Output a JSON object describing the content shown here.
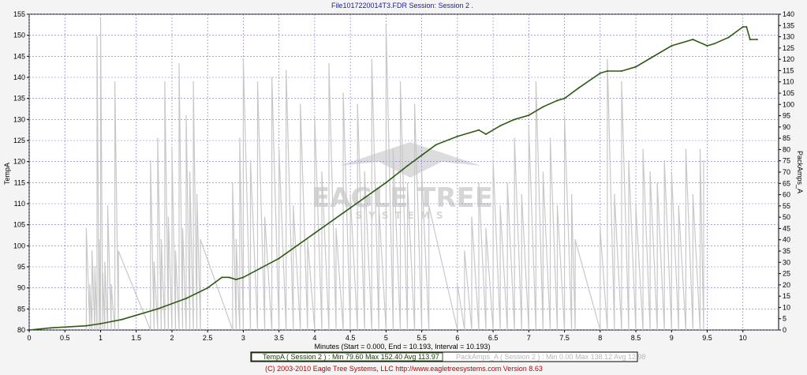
{
  "chart_data": {
    "type": "line",
    "title": "File1017220014T3.FDR   Session: Session 2 .",
    "xlabel": "Minutes (Start = 0.000,  End = 10.193,  Interval = 10.193)",
    "ylabel_left": "TempA",
    "ylabel_right": "PackAmps_A",
    "xlim": [
      0,
      10.5
    ],
    "ylim_left": [
      80,
      155
    ],
    "ylim_right": [
      0,
      140
    ],
    "grid": true,
    "x_ticks": [
      "0",
      "0.5",
      "1",
      "1.5",
      "2",
      "2.5",
      "3",
      "3.5",
      "4",
      "4.5",
      "5",
      "5.5",
      "6",
      "6.5",
      "7",
      "7.5",
      "8",
      "8.5",
      "9",
      "9.5",
      "10"
    ],
    "y_left_ticks": [
      "80",
      "85",
      "90",
      "95",
      "100",
      "105",
      "110",
      "115",
      "120",
      "125",
      "130",
      "135",
      "140",
      "145",
      "150",
      "155"
    ],
    "y_right_ticks": [
      "0",
      "5",
      "10",
      "15",
      "20",
      "25",
      "30",
      "35",
      "40",
      "45",
      "50",
      "55",
      "60",
      "65",
      "70",
      "75",
      "80",
      "85",
      "90",
      "95",
      "100",
      "105",
      "110",
      "115",
      "120",
      "125",
      "130",
      "135",
      "140"
    ],
    "series": [
      {
        "name": "TempA",
        "axis": "left",
        "color": "#2f5a14",
        "x": [
          0,
          0.3,
          0.8,
          1.0,
          1.3,
          1.5,
          1.8,
          2.2,
          2.5,
          2.7,
          2.8,
          2.9,
          3.0,
          3.5,
          4.0,
          4.5,
          5.0,
          5.3,
          5.5,
          5.7,
          6.0,
          6.3,
          6.4,
          6.6,
          6.8,
          7.0,
          7.2,
          7.4,
          7.5,
          7.7,
          8.0,
          8.1,
          8.3,
          8.5,
          8.7,
          9.0,
          9.3,
          9.5,
          9.6,
          9.8,
          10.0,
          10.05,
          10.1,
          10.2
        ],
        "y": [
          80,
          80.5,
          81,
          81.5,
          82.5,
          83.5,
          85,
          87.5,
          90,
          92.5,
          92.5,
          92,
          92.5,
          97,
          103,
          109,
          115,
          119,
          121.5,
          124,
          126,
          127.5,
          126.5,
          128.5,
          130,
          131,
          133,
          134.5,
          135,
          137.5,
          141,
          141.5,
          141.5,
          142.5,
          144.5,
          147.5,
          149,
          147.5,
          148,
          149.5,
          152,
          152,
          149,
          149
        ]
      },
      {
        "name": "PackAmps_A",
        "axis": "right",
        "color": "#c8c8c8",
        "x": [
          0.8,
          0.85,
          0.88,
          0.92,
          0.95,
          0.98,
          1.0,
          1.03,
          1.06,
          1.1,
          1.15,
          1.2,
          1.25,
          1.7,
          1.75,
          1.8,
          1.85,
          1.9,
          1.95,
          2.0,
          2.05,
          2.1,
          2.15,
          2.2,
          2.25,
          2.3,
          2.35,
          2.4,
          2.85,
          2.9,
          2.95,
          3.0,
          3.1,
          3.2,
          3.3,
          3.4,
          3.5,
          3.6,
          3.7,
          3.8,
          3.9,
          4.0,
          4.1,
          4.2,
          4.3,
          4.4,
          4.5,
          4.6,
          4.7,
          4.8,
          4.9,
          5.0,
          5.1,
          5.2,
          5.3,
          5.4,
          5.5,
          5.6,
          6.0,
          6.1,
          6.2,
          6.3,
          6.4,
          6.5,
          6.6,
          6.7,
          6.8,
          6.9,
          7.0,
          7.1,
          7.2,
          7.3,
          7.4,
          7.5,
          7.6,
          7.65,
          8.0,
          8.1,
          8.2,
          8.3,
          8.4,
          8.5,
          8.6,
          8.7,
          8.8,
          8.9,
          9.0,
          9.1,
          9.2,
          9.3,
          9.4,
          9.45
        ],
        "y": [
          45,
          20,
          35,
          28,
          130,
          40,
          138,
          25,
          30,
          55,
          20,
          110,
          35,
          75,
          30,
          85,
          40,
          110,
          50,
          80,
          35,
          118,
          45,
          95,
          70,
          110,
          60,
          40,
          65,
          40,
          85,
          120,
          75,
          110,
          50,
          112,
          80,
          115,
          55,
          100,
          40,
          95,
          70,
          118,
          45,
          105,
          60,
          100,
          70,
          120,
          55,
          135,
          80,
          110,
          65,
          100,
          70,
          55,
          20,
          35,
          50,
          65,
          45,
          75,
          55,
          65,
          85,
          60,
          90,
          110,
          70,
          85,
          55,
          95,
          60,
          40,
          45,
          120,
          60,
          110,
          75,
          55,
          80,
          70,
          65,
          75,
          70,
          55,
          80,
          60,
          80,
          75
        ]
      }
    ],
    "legend": [
      {
        "label": "TempA ( Session 2 ) : Min 79.60   Max 152.40   Avg 113.97",
        "color": "#2f5a14"
      },
      {
        "label": "PackAmps_A ( Session 2 ) : Min 0.00   Max 138.12   Avg 12.98",
        "color": "#c0c0c0"
      }
    ]
  },
  "watermark": {
    "brand": "EAGLE TREE",
    "subtitle": "SYSTEMS"
  },
  "footer": "(C) 2003-2010 Eagle Tree Systems, LLC     http://www.eagletreesystems.com     Version 8.63"
}
